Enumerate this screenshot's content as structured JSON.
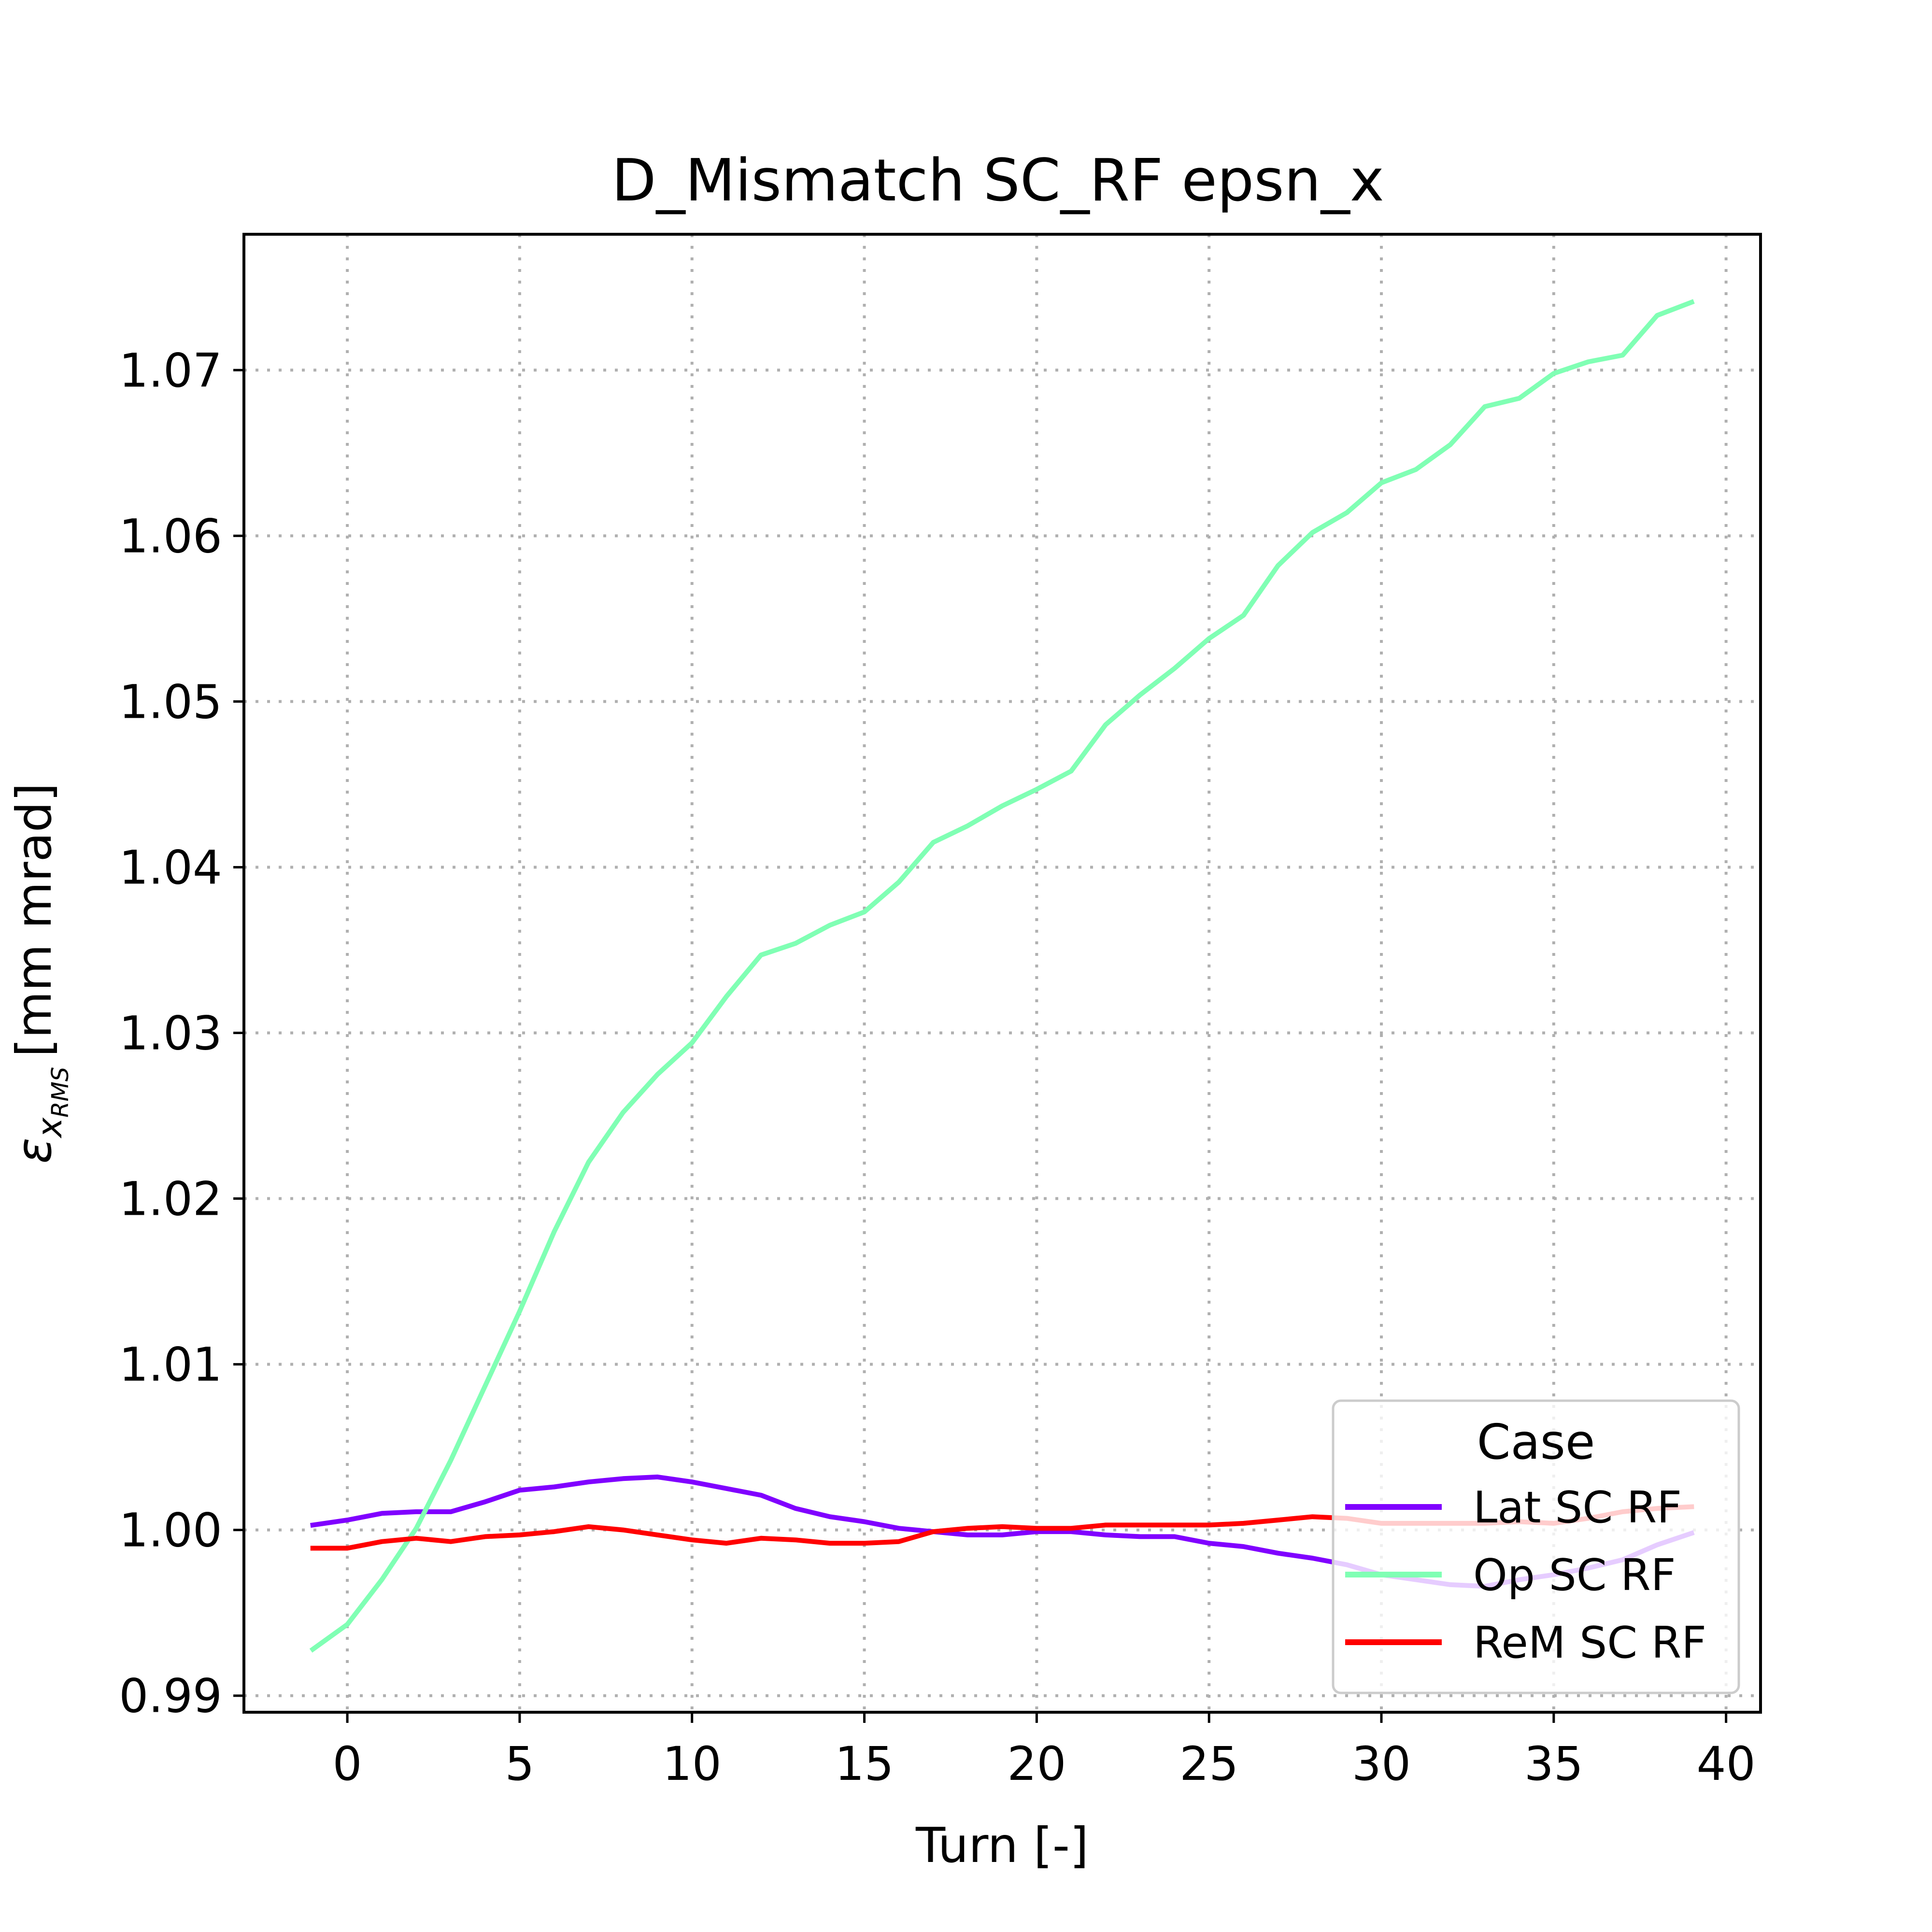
{
  "chart_data": {
    "type": "line",
    "title": "D_Mismatch SC_RF epsn_x",
    "xlabel": "Turn [-]",
    "ylabel_symbol": "ε",
    "ylabel_sub": "x",
    "ylabel_subsub": "RMS",
    "ylabel_units": "[mm mrad]",
    "xlim": [
      -3,
      41
    ],
    "ylim": [
      0.989,
      1.0782
    ],
    "xticks": [
      0,
      5,
      10,
      15,
      20,
      25,
      30,
      35,
      40
    ],
    "yticks": [
      0.99,
      1.0,
      1.01,
      1.02,
      1.03,
      1.04,
      1.05,
      1.06,
      1.07
    ],
    "ytick_labels": [
      "0.99",
      "1.00",
      "1.01",
      "1.02",
      "1.03",
      "1.04",
      "1.05",
      "1.06",
      "1.07"
    ],
    "grid": true,
    "legend": {
      "title": "Case",
      "position": "lower right"
    },
    "x": [
      -1,
      0,
      1,
      2,
      3,
      4,
      5,
      6,
      7,
      8,
      9,
      10,
      11,
      12,
      13,
      14,
      15,
      16,
      17,
      18,
      19,
      20,
      21,
      22,
      23,
      24,
      25,
      26,
      27,
      28,
      29,
      30,
      31,
      32,
      33,
      34,
      35,
      36,
      37,
      38,
      39
    ],
    "series": [
      {
        "name": "Lat SC RF",
        "color": "#8000ff",
        "values": [
          1.0003,
          1.0006,
          1.001,
          1.0011,
          1.0011,
          1.0017,
          1.0024,
          1.0026,
          1.0029,
          1.0031,
          1.0032,
          1.0029,
          1.0025,
          1.0021,
          1.0013,
          1.0008,
          1.0005,
          1.0001,
          0.9999,
          0.9997,
          0.9997,
          0.9999,
          0.9999,
          0.9997,
          0.9996,
          0.9996,
          0.9992,
          0.999,
          0.9986,
          0.9983,
          0.9979,
          0.9973,
          0.997,
          0.9967,
          0.9966,
          0.997,
          0.9973,
          0.9977,
          0.9982,
          0.9991,
          0.9998
        ]
      },
      {
        "name": "Op SC RF",
        "color": "#80ffb4",
        "values": [
          0.9928,
          0.9943,
          0.997,
          1.0001,
          1.0042,
          1.0087,
          1.0132,
          1.018,
          1.0222,
          1.0252,
          1.0275,
          1.0294,
          1.0322,
          1.0347,
          1.0354,
          1.0365,
          1.0373,
          1.0391,
          1.0415,
          1.0425,
          1.0437,
          1.0447,
          1.0458,
          1.0486,
          1.0504,
          1.052,
          1.0538,
          1.0552,
          1.0582,
          1.0602,
          1.0614,
          1.0632,
          1.064,
          1.0655,
          1.0678,
          1.0683,
          1.0698,
          1.0705,
          1.0709,
          1.0733,
          1.0741
        ]
      },
      {
        "name": "ReM SC RF",
        "color": "#ff0000",
        "values": [
          0.9989,
          0.9989,
          0.9993,
          0.9995,
          0.9993,
          0.9996,
          0.9997,
          0.9999,
          1.0002,
          1.0,
          0.9997,
          0.9994,
          0.9992,
          0.9995,
          0.9994,
          0.9992,
          0.9992,
          0.9993,
          0.9999,
          1.0001,
          1.0002,
          1.0001,
          1.0001,
          1.0003,
          1.0003,
          1.0003,
          1.0003,
          1.0004,
          1.0006,
          1.0008,
          1.0007,
          1.0004,
          1.0004,
          1.0004,
          1.0004,
          1.0005,
          1.0004,
          1.0007,
          1.0011,
          1.0013,
          1.0014
        ]
      }
    ]
  }
}
